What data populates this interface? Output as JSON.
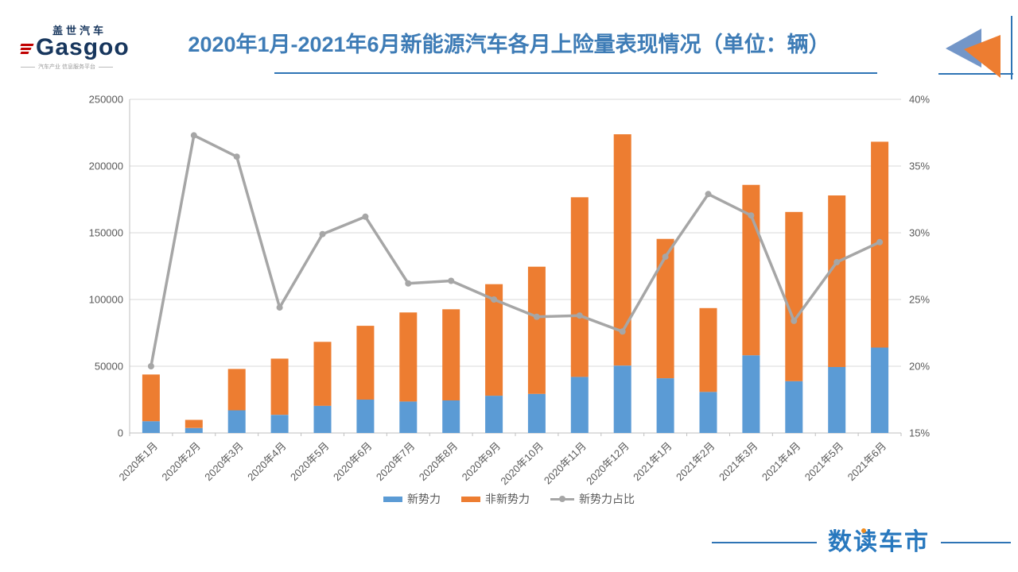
{
  "header": {
    "title": "2020年1月-2021年6月新能源汽车各月上险量表现情况（单位：辆）",
    "logo": {
      "brand_cn": "盖世汽车",
      "brand_en": "Gasgoo",
      "tagline": "汽车产业 信息服务平台"
    }
  },
  "footer": {
    "brand_prefix": "数",
    "brand_dotchar": "读",
    "brand_suffix": "车市"
  },
  "colors": {
    "title": "#3E7CB6",
    "accent_line": "#2E74B5",
    "bar_new_forces": "#5B9BD5",
    "bar_non_new_forces": "#ED7D31",
    "share_line": "#A6A6A6",
    "grid": "#D9D9D9",
    "axis": "#BFBFBF",
    "axis_text": "#595959",
    "triangle_blue": "#7396C8",
    "triangle_orange": "#ED7D31"
  },
  "chart_data": {
    "type": "bar",
    "subtype": "stacked bars with percentage line overlay (dual axis)",
    "title": "2020年1月-2021年6月新能源汽车各月上险量表现情况（单位：辆）",
    "categories": [
      "2020年1月",
      "2020年2月",
      "2020年3月",
      "2020年4月",
      "2020年5月",
      "2020年6月",
      "2020年7月",
      "2020年8月",
      "2020年9月",
      "2020年10月",
      "2020年11月",
      "2020年12月",
      "2021年1月",
      "2021年2月",
      "2021年3月",
      "2021年4月",
      "2021年5月",
      "2021年6月"
    ],
    "series": [
      {
        "name": "新势力",
        "type": "bar",
        "stack": true,
        "color": "#5B9BD5",
        "values": [
          8800,
          3700,
          17000,
          13600,
          20400,
          25000,
          23600,
          24400,
          27900,
          29300,
          42000,
          50500,
          41000,
          30800,
          58200,
          38800,
          49400,
          64000
        ]
      },
      {
        "name": "非新势力",
        "type": "bar",
        "stack": true,
        "color": "#ED7D31",
        "values": [
          35000,
          6100,
          31000,
          42100,
          47900,
          55300,
          66700,
          68300,
          83600,
          95300,
          134600,
          173300,
          104400,
          62800,
          127700,
          126800,
          128600,
          154200
        ]
      },
      {
        "name": "新势力占比",
        "type": "line",
        "axis": "right",
        "color": "#A6A6A6",
        "values": [
          20.0,
          37.3,
          35.7,
          24.4,
          29.9,
          31.2,
          26.2,
          26.4,
          25.0,
          23.7,
          23.8,
          22.6,
          28.2,
          32.9,
          31.3,
          23.4,
          27.8,
          29.3
        ]
      }
    ],
    "left_axis": {
      "min": 0,
      "max": 250000,
      "step": 50000
    },
    "right_axis": {
      "min": 15,
      "max": 40,
      "step": 5,
      "suffix": "%"
    },
    "grid": "horizontal",
    "legend_position": "bottom"
  }
}
